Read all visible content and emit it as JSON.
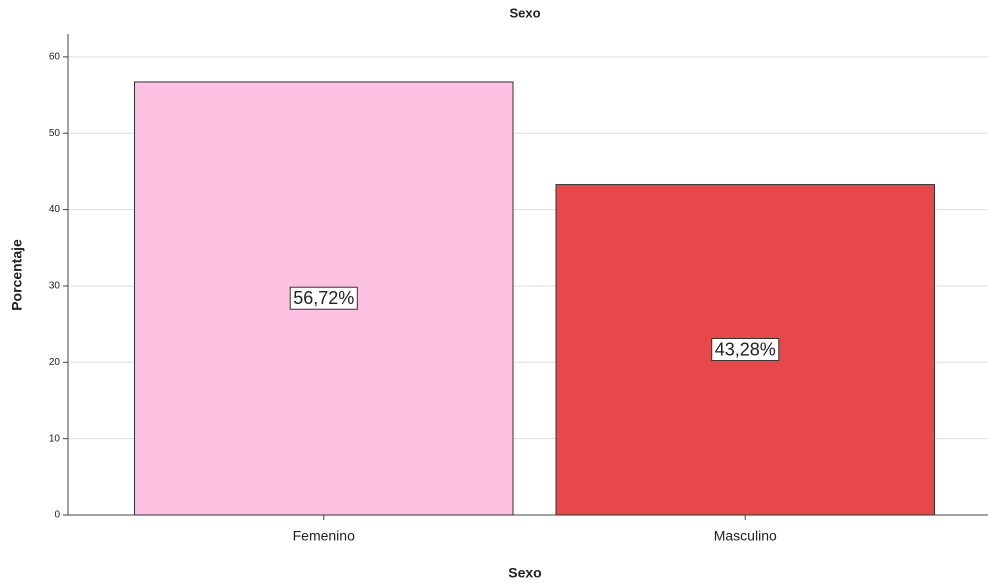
{
  "chart_data": {
    "type": "bar",
    "title": "Sexo",
    "x_label": "Sexo",
    "y_label": "Porcentaje",
    "categories": [
      "Femenino",
      "Masculino"
    ],
    "values": [
      56.72,
      43.28
    ],
    "value_labels": [
      "56,72%",
      "43,28%"
    ],
    "colors": [
      "#fcc0e0",
      "#e8484a"
    ],
    "ylim": [
      0,
      63
    ],
    "yticks": [
      0,
      10,
      20,
      30,
      40,
      50,
      60
    ],
    "grid": true
  }
}
